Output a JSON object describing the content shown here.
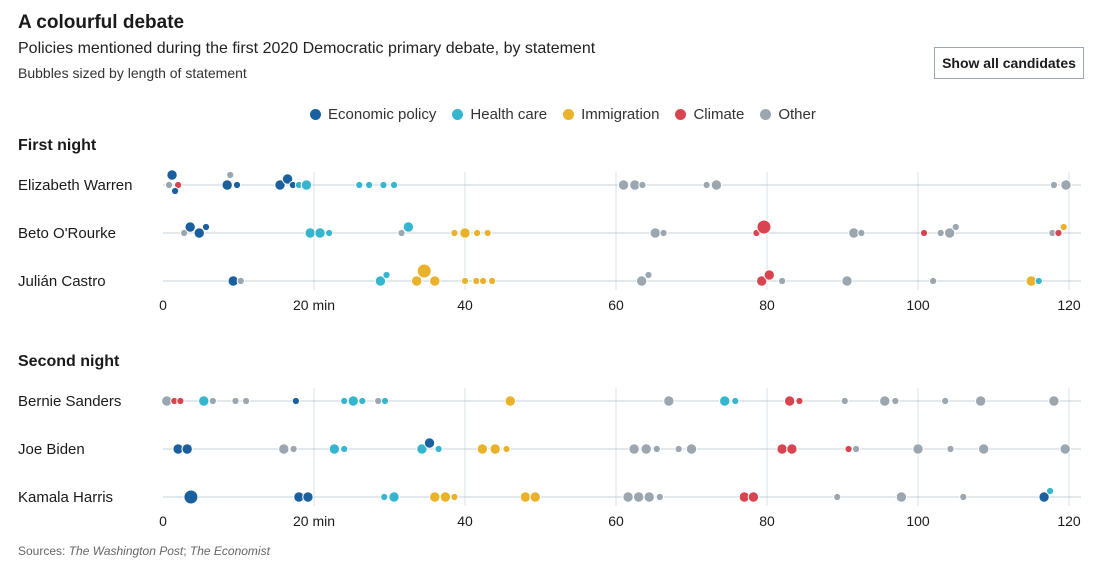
{
  "header": {
    "title": "A colourful debate",
    "subtitle": "Policies mentioned during the first 2020 Democratic primary debate, by statement",
    "note": "Bubbles sized by length of statement"
  },
  "controls": {
    "show_all_label": "Show all candidates"
  },
  "footer": {
    "sources_prefix": "Sources: ",
    "source_1": "The Washington Post",
    "source_sep": "; ",
    "source_2": "The Economist"
  },
  "chart_data": {
    "type": "scatter",
    "xlim": [
      0,
      120
    ],
    "xticks": [
      0,
      20,
      40,
      60,
      80,
      100,
      120
    ],
    "xtick_labels": [
      "0",
      "20 min",
      "40",
      "60",
      "80",
      "100",
      "120"
    ],
    "categories": [
      {
        "key": "eco",
        "name": "Economic policy",
        "color": "#1a5f9e"
      },
      {
        "key": "hc",
        "name": "Health care",
        "color": "#35b6cf"
      },
      {
        "key": "imm",
        "name": "Immigration",
        "color": "#e9b22a"
      },
      {
        "key": "cli",
        "name": "Climate",
        "color": "#d84550"
      },
      {
        "key": "oth",
        "name": "Other",
        "color": "#9aa6b0"
      }
    ],
    "panels": [
      {
        "title": "First night",
        "candidates": [
          {
            "name": "Elizabeth Warren",
            "statements": [
              {
                "t": 0.8,
                "c": "oth",
                "s": 1
              },
              {
                "t": 1.2,
                "c": "eco",
                "s": 2
              },
              {
                "t": 2.0,
                "c": "cli",
                "s": 1
              },
              {
                "t": 1.6,
                "c": "eco",
                "s": 1
              },
              {
                "t": 8.5,
                "c": "eco",
                "s": 2
              },
              {
                "t": 9.8,
                "c": "eco",
                "s": 1
              },
              {
                "t": 8.9,
                "c": "oth",
                "s": 1
              },
              {
                "t": 15.5,
                "c": "eco",
                "s": 2
              },
              {
                "t": 16.5,
                "c": "eco",
                "s": 2
              },
              {
                "t": 17.2,
                "c": "eco",
                "s": 1
              },
              {
                "t": 18.0,
                "c": "hc",
                "s": 1
              },
              {
                "t": 19.0,
                "c": "hc",
                "s": 2
              },
              {
                "t": 26.0,
                "c": "hc",
                "s": 1
              },
              {
                "t": 27.3,
                "c": "hc",
                "s": 1
              },
              {
                "t": 29.2,
                "c": "hc",
                "s": 1
              },
              {
                "t": 30.6,
                "c": "hc",
                "s": 1
              },
              {
                "t": 61.0,
                "c": "oth",
                "s": 2
              },
              {
                "t": 62.5,
                "c": "oth",
                "s": 2
              },
              {
                "t": 63.5,
                "c": "oth",
                "s": 1
              },
              {
                "t": 72.0,
                "c": "oth",
                "s": 1
              },
              {
                "t": 73.3,
                "c": "oth",
                "s": 2
              },
              {
                "t": 118.0,
                "c": "oth",
                "s": 1
              },
              {
                "t": 119.6,
                "c": "oth",
                "s": 2
              }
            ]
          },
          {
            "name": "Beto O'Rourke",
            "statements": [
              {
                "t": 2.8,
                "c": "oth",
                "s": 1
              },
              {
                "t": 3.6,
                "c": "eco",
                "s": 2
              },
              {
                "t": 4.8,
                "c": "eco",
                "s": 2
              },
              {
                "t": 5.7,
                "c": "eco",
                "s": 1
              },
              {
                "t": 19.5,
                "c": "hc",
                "s": 2
              },
              {
                "t": 20.8,
                "c": "hc",
                "s": 2
              },
              {
                "t": 22.0,
                "c": "hc",
                "s": 1
              },
              {
                "t": 31.6,
                "c": "oth",
                "s": 1
              },
              {
                "t": 32.5,
                "c": "hc",
                "s": 2
              },
              {
                "t": 38.6,
                "c": "imm",
                "s": 1
              },
              {
                "t": 40.0,
                "c": "imm",
                "s": 2
              },
              {
                "t": 41.6,
                "c": "imm",
                "s": 1
              },
              {
                "t": 43.0,
                "c": "imm",
                "s": 1
              },
              {
                "t": 65.2,
                "c": "oth",
                "s": 2
              },
              {
                "t": 66.3,
                "c": "oth",
                "s": 1
              },
              {
                "t": 78.6,
                "c": "cli",
                "s": 1
              },
              {
                "t": 79.6,
                "c": "cli",
                "s": 3
              },
              {
                "t": 91.5,
                "c": "oth",
                "s": 2
              },
              {
                "t": 92.5,
                "c": "oth",
                "s": 1
              },
              {
                "t": 100.8,
                "c": "cli",
                "s": 1
              },
              {
                "t": 103.0,
                "c": "oth",
                "s": 1
              },
              {
                "t": 104.2,
                "c": "oth",
                "s": 2
              },
              {
                "t": 105.0,
                "c": "oth",
                "s": 1
              },
              {
                "t": 117.8,
                "c": "oth",
                "s": 1
              },
              {
                "t": 118.6,
                "c": "cli",
                "s": 1
              },
              {
                "t": 119.3,
                "c": "imm",
                "s": 1
              }
            ]
          },
          {
            "name": "Julián Castro",
            "statements": [
              {
                "t": 9.3,
                "c": "eco",
                "s": 2
              },
              {
                "t": 10.3,
                "c": "oth",
                "s": 1
              },
              {
                "t": 28.8,
                "c": "hc",
                "s": 2
              },
              {
                "t": 29.6,
                "c": "hc",
                "s": 1
              },
              {
                "t": 33.6,
                "c": "imm",
                "s": 2
              },
              {
                "t": 34.6,
                "c": "imm",
                "s": 3
              },
              {
                "t": 36.0,
                "c": "imm",
                "s": 2
              },
              {
                "t": 40.0,
                "c": "imm",
                "s": 1
              },
              {
                "t": 41.5,
                "c": "imm",
                "s": 1
              },
              {
                "t": 42.4,
                "c": "imm",
                "s": 1
              },
              {
                "t": 43.6,
                "c": "imm",
                "s": 1
              },
              {
                "t": 63.4,
                "c": "oth",
                "s": 2
              },
              {
                "t": 64.3,
                "c": "oth",
                "s": 1
              },
              {
                "t": 79.3,
                "c": "cli",
                "s": 2
              },
              {
                "t": 80.3,
                "c": "cli",
                "s": 2
              },
              {
                "t": 82.0,
                "c": "oth",
                "s": 1
              },
              {
                "t": 90.6,
                "c": "oth",
                "s": 2
              },
              {
                "t": 102.0,
                "c": "oth",
                "s": 1
              },
              {
                "t": 115.0,
                "c": "imm",
                "s": 2
              },
              {
                "t": 116.0,
                "c": "hc",
                "s": 1
              }
            ]
          }
        ]
      },
      {
        "title": "Second night",
        "candidates": [
          {
            "name": "Bernie Sanders",
            "statements": [
              {
                "t": 0.5,
                "c": "oth",
                "s": 2
              },
              {
                "t": 1.5,
                "c": "cli",
                "s": 1
              },
              {
                "t": 2.3,
                "c": "cli",
                "s": 1
              },
              {
                "t": 5.4,
                "c": "hc",
                "s": 2
              },
              {
                "t": 6.6,
                "c": "oth",
                "s": 1
              },
              {
                "t": 9.6,
                "c": "oth",
                "s": 1
              },
              {
                "t": 11.0,
                "c": "oth",
                "s": 1
              },
              {
                "t": 17.6,
                "c": "eco",
                "s": 1
              },
              {
                "t": 24.0,
                "c": "hc",
                "s": 1
              },
              {
                "t": 25.2,
                "c": "hc",
                "s": 2
              },
              {
                "t": 26.4,
                "c": "hc",
                "s": 1
              },
              {
                "t": 28.5,
                "c": "oth",
                "s": 1
              },
              {
                "t": 29.4,
                "c": "hc",
                "s": 1
              },
              {
                "t": 46.0,
                "c": "imm",
                "s": 2
              },
              {
                "t": 67.0,
                "c": "oth",
                "s": 2
              },
              {
                "t": 74.4,
                "c": "hc",
                "s": 2
              },
              {
                "t": 75.8,
                "c": "hc",
                "s": 1
              },
              {
                "t": 83.0,
                "c": "cli",
                "s": 2
              },
              {
                "t": 84.3,
                "c": "cli",
                "s": 1
              },
              {
                "t": 90.3,
                "c": "oth",
                "s": 1
              },
              {
                "t": 95.6,
                "c": "oth",
                "s": 2
              },
              {
                "t": 97.0,
                "c": "oth",
                "s": 1
              },
              {
                "t": 103.6,
                "c": "oth",
                "s": 1
              },
              {
                "t": 108.3,
                "c": "oth",
                "s": 2
              },
              {
                "t": 118.0,
                "c": "oth",
                "s": 2
              }
            ]
          },
          {
            "name": "Joe Biden",
            "statements": [
              {
                "t": 2.0,
                "c": "eco",
                "s": 2
              },
              {
                "t": 3.2,
                "c": "eco",
                "s": 2
              },
              {
                "t": 16.0,
                "c": "oth",
                "s": 2
              },
              {
                "t": 17.3,
                "c": "oth",
                "s": 1
              },
              {
                "t": 22.7,
                "c": "hc",
                "s": 2
              },
              {
                "t": 24.0,
                "c": "hc",
                "s": 1
              },
              {
                "t": 34.3,
                "c": "hc",
                "s": 2
              },
              {
                "t": 35.3,
                "c": "eco",
                "s": 2
              },
              {
                "t": 36.5,
                "c": "hc",
                "s": 1
              },
              {
                "t": 42.3,
                "c": "imm",
                "s": 2
              },
              {
                "t": 44.0,
                "c": "imm",
                "s": 2
              },
              {
                "t": 45.5,
                "c": "imm",
                "s": 1
              },
              {
                "t": 62.4,
                "c": "oth",
                "s": 2
              },
              {
                "t": 64.0,
                "c": "oth",
                "s": 2
              },
              {
                "t": 65.4,
                "c": "oth",
                "s": 1
              },
              {
                "t": 68.3,
                "c": "oth",
                "s": 1
              },
              {
                "t": 70.0,
                "c": "oth",
                "s": 2
              },
              {
                "t": 82.0,
                "c": "cli",
                "s": 2
              },
              {
                "t": 83.3,
                "c": "cli",
                "s": 2
              },
              {
                "t": 90.8,
                "c": "cli",
                "s": 1
              },
              {
                "t": 91.8,
                "c": "oth",
                "s": 1
              },
              {
                "t": 100.0,
                "c": "oth",
                "s": 2
              },
              {
                "t": 104.3,
                "c": "oth",
                "s": 1
              },
              {
                "t": 108.7,
                "c": "oth",
                "s": 2
              },
              {
                "t": 119.5,
                "c": "oth",
                "s": 2
              }
            ]
          },
          {
            "name": "Kamala Harris",
            "statements": [
              {
                "t": 3.7,
                "c": "eco",
                "s": 3
              },
              {
                "t": 18.0,
                "c": "eco",
                "s": 2
              },
              {
                "t": 19.2,
                "c": "eco",
                "s": 2
              },
              {
                "t": 29.3,
                "c": "hc",
                "s": 1
              },
              {
                "t": 30.6,
                "c": "hc",
                "s": 2
              },
              {
                "t": 36.0,
                "c": "imm",
                "s": 2
              },
              {
                "t": 37.4,
                "c": "imm",
                "s": 2
              },
              {
                "t": 38.6,
                "c": "imm",
                "s": 1
              },
              {
                "t": 48.0,
                "c": "imm",
                "s": 2
              },
              {
                "t": 49.3,
                "c": "imm",
                "s": 2
              },
              {
                "t": 61.6,
                "c": "oth",
                "s": 2
              },
              {
                "t": 63.0,
                "c": "oth",
                "s": 2
              },
              {
                "t": 64.4,
                "c": "oth",
                "s": 2
              },
              {
                "t": 65.8,
                "c": "oth",
                "s": 1
              },
              {
                "t": 77.0,
                "c": "cli",
                "s": 2
              },
              {
                "t": 78.2,
                "c": "cli",
                "s": 2
              },
              {
                "t": 89.3,
                "c": "oth",
                "s": 1
              },
              {
                "t": 97.8,
                "c": "oth",
                "s": 2
              },
              {
                "t": 106.0,
                "c": "oth",
                "s": 1
              },
              {
                "t": 116.7,
                "c": "eco",
                "s": 2
              },
              {
                "t": 117.5,
                "c": "hc",
                "s": 1
              }
            ]
          }
        ]
      }
    ]
  }
}
